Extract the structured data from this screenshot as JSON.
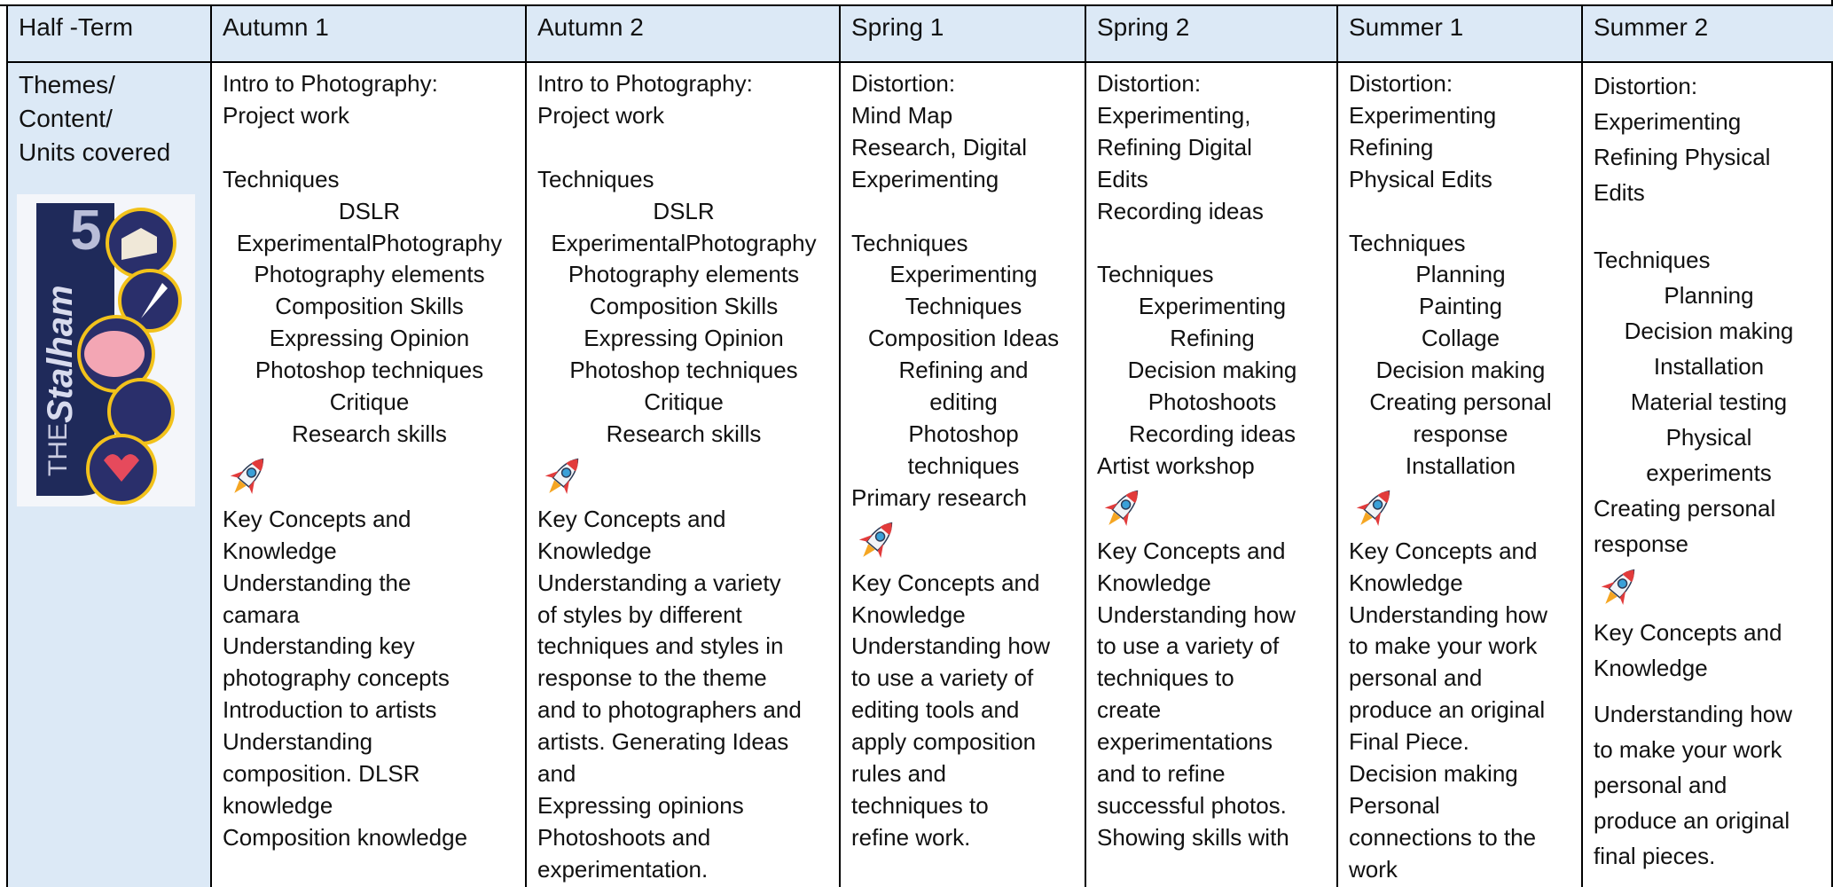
{
  "table": {
    "header": [
      "Half -Term",
      "Autumn 1",
      "Autumn 2",
      "Spring 1",
      "Spring 2",
      "Summer 1",
      "Summer 2"
    ],
    "row_label": [
      "Themes/",
      "Content/",
      "Units covered"
    ],
    "logo": {
      "prefix": "THE",
      "name": "Stalham",
      "number": "5"
    },
    "cells": [
      {
        "intro": [
          "Intro to Photography:",
          "Project work"
        ],
        "techniques_title": "Techniques",
        "techniques": [
          "DSLR",
          "ExperimentalPhotography",
          "Photography elements",
          "Composition Skills",
          "Expressing Opinion",
          "Photoshop techniques",
          "Critique",
          "Research skills"
        ],
        "concepts": [
          "Key Concepts and",
          "Knowledge",
          "Understanding the",
          "camara",
          "Understanding key",
          "photography concepts",
          "Introduction to artists",
          "Understanding",
          "composition. DLSR",
          "knowledge",
          "Composition knowledge"
        ]
      },
      {
        "intro": [
          "Intro to Photography:",
          "Project work"
        ],
        "techniques_title": "Techniques",
        "techniques": [
          "DSLR",
          "ExperimentalPhotography",
          "Photography elements",
          "Composition Skills",
          "Expressing Opinion",
          "Photoshop techniques",
          "Critique",
          "Research skills"
        ],
        "concepts": [
          "Key Concepts and",
          "Knowledge",
          "Understanding a variety",
          "of styles by different",
          "techniques and styles in",
          "response to the theme",
          "and to photographers and",
          "artists. Generating Ideas",
          "and",
          "Expressing opinions",
          "Photoshoots and",
          "experimentation."
        ]
      },
      {
        "intro": [
          "Distortion:",
          "Mind Map",
          "Research, Digital",
          "Experimenting"
        ],
        "techniques_title": "Techniques",
        "techniques": [
          "Experimenting",
          "Techniques",
          "Composition Ideas",
          "Refining and",
          "editing",
          "Photoshop",
          "techniques"
        ],
        "extra": [
          "Primary research"
        ],
        "concepts": [
          "Key Concepts and",
          "Knowledge",
          "Understanding how",
          "to use a variety of",
          "editing tools and",
          "apply composition",
          "rules and",
          "techniques to",
          "refine work."
        ]
      },
      {
        "intro": [
          "Distortion:",
          "Experimenting,",
          "Refining Digital",
          "Edits",
          "Recording ideas"
        ],
        "techniques_title": "Techniques",
        "techniques": [
          "Experimenting",
          "Refining",
          "Decision making",
          "Photoshoots",
          "Recording ideas"
        ],
        "extra": [
          "Artist workshop"
        ],
        "concepts": [
          "Key Concepts and",
          "Knowledge",
          "Understanding how",
          "to use a variety of",
          "techniques to",
          "create",
          "experimentations",
          "and to refine",
          "successful photos.",
          "Showing skills with"
        ]
      },
      {
        "intro": [
          "Distortion:",
          "Experimenting",
          "Refining",
          "Physical Edits"
        ],
        "techniques_title": "Techniques",
        "techniques": [
          "Planning",
          "Painting",
          "Collage",
          "Decision making",
          "Creating personal",
          "response",
          "Installation"
        ],
        "concepts": [
          "Key Concepts and",
          "Knowledge",
          "Understanding how",
          "to make your work",
          "personal and",
          "produce an original",
          "Final Piece.",
          "Decision making",
          "Personal",
          "connections to the",
          "work"
        ]
      },
      {
        "intro": [
          "Distortion:",
          "Experimenting",
          "Refining Physical",
          "Edits"
        ],
        "techniques_title": "Techniques",
        "techniques": [
          "Planning",
          "Decision making",
          "Installation",
          "Material testing",
          "Physical",
          "experiments"
        ],
        "extra": [
          "Creating personal",
          "response"
        ],
        "concepts": [
          "Key Concepts and",
          "Knowledge"
        ],
        "concepts_more": [
          "Understanding how",
          "to make your work",
          "personal and",
          "produce an original",
          "final pieces."
        ]
      }
    ]
  }
}
